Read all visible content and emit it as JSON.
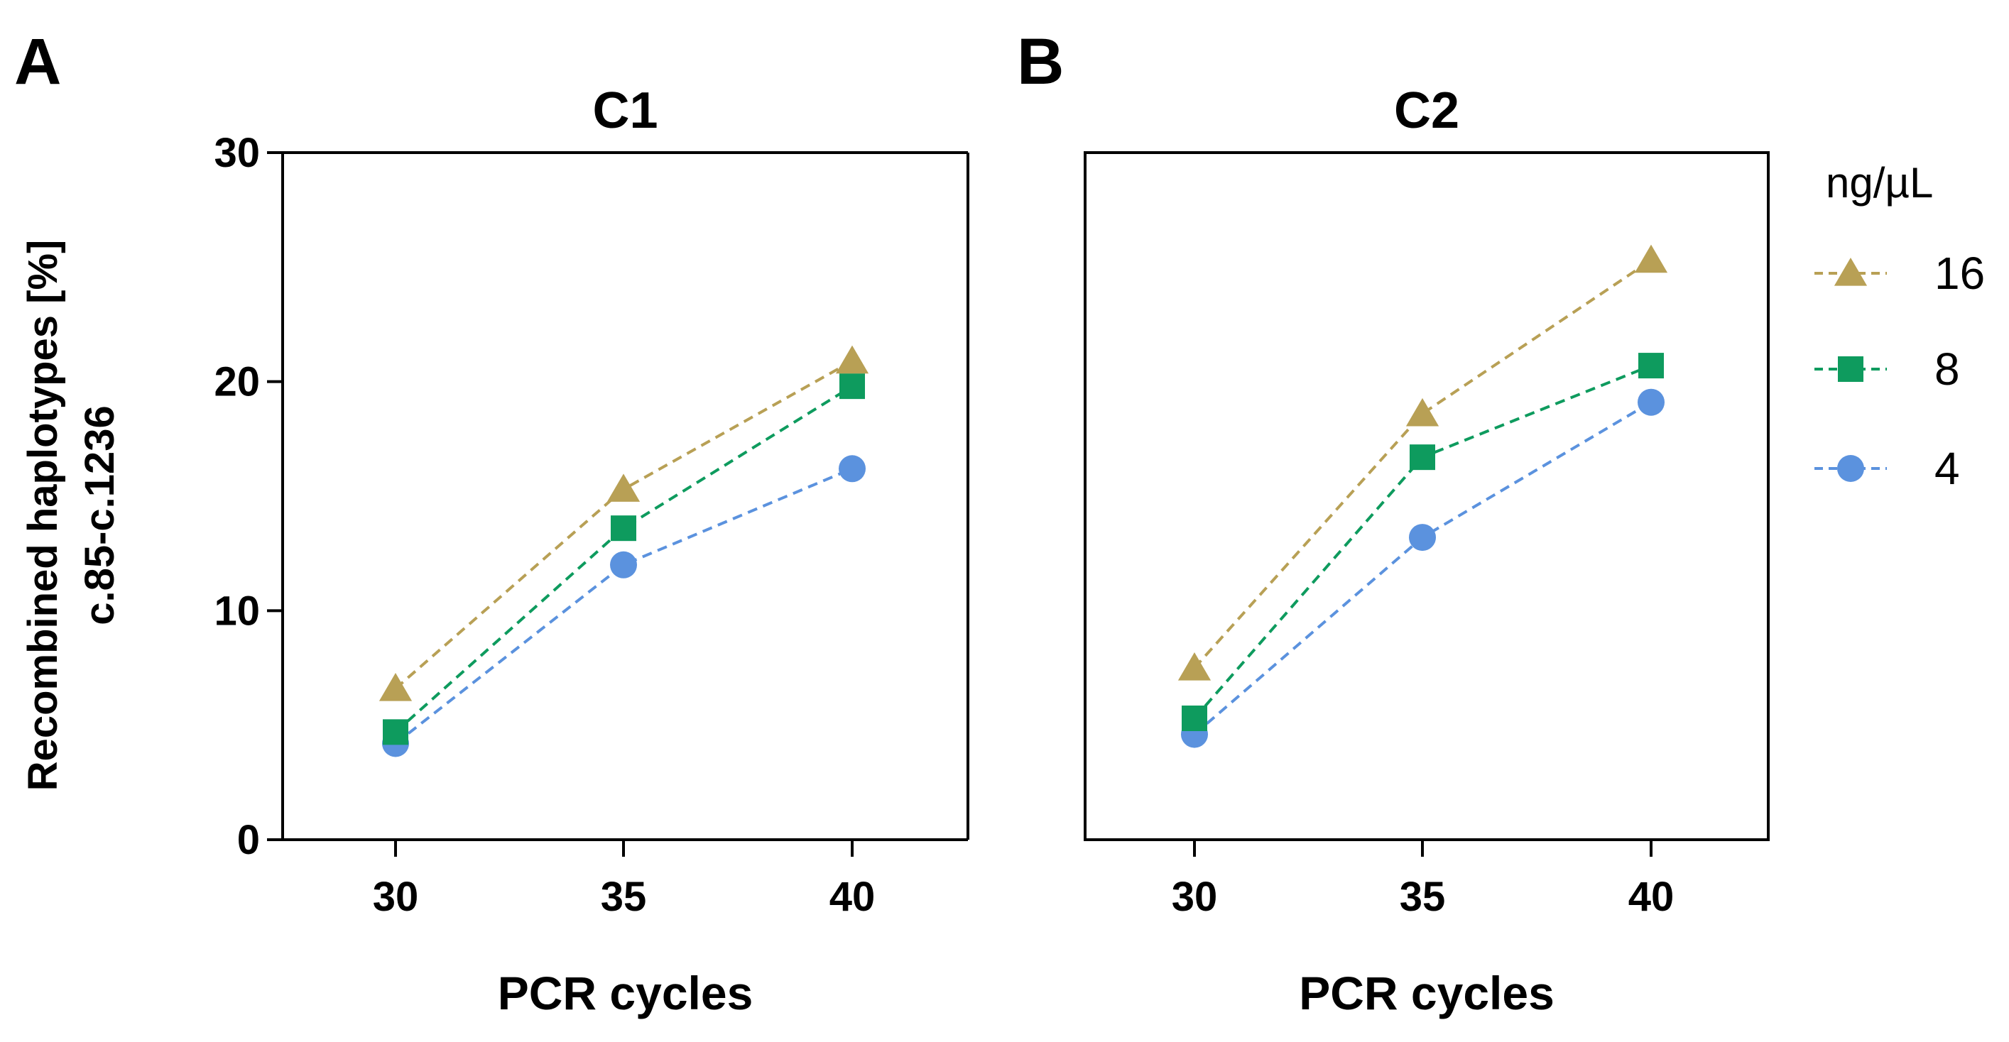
{
  "panel_labels": [
    "A",
    "B"
  ],
  "y_axis": {
    "label_line1": "Recombined haplotypes [%]",
    "label_line2": "c.85-c.1236"
  },
  "legend": {
    "title": "ng/µL",
    "items": [
      {
        "label": "16",
        "marker": "triangle",
        "color": "#B8A055"
      },
      {
        "label": "8",
        "marker": "square",
        "color": "#0E9B5E"
      },
      {
        "label": "4",
        "marker": "circle",
        "color": "#5B92DE"
      }
    ]
  },
  "chart_data": [
    {
      "type": "line",
      "title": "C1",
      "xlabel": "PCR cycles",
      "ylabel": "Recombined haplotypes [%] c.85-c.1236",
      "x": [
        30,
        35,
        40
      ],
      "xticks": [
        "30",
        "35",
        "40"
      ],
      "yticks": [
        "0",
        "10",
        "20",
        "30"
      ],
      "ylim": [
        0,
        30
      ],
      "series": [
        {
          "name": "16",
          "values": [
            6.6,
            15.3,
            20.9
          ]
        },
        {
          "name": "8",
          "values": [
            4.7,
            13.6,
            19.8
          ]
        },
        {
          "name": "4",
          "values": [
            4.2,
            12.0,
            16.2
          ]
        }
      ]
    },
    {
      "type": "line",
      "title": "C2",
      "xlabel": "PCR cycles",
      "x": [
        30,
        35,
        40
      ],
      "xticks": [
        "30",
        "35",
        "40"
      ],
      "ylim": [
        0,
        30
      ],
      "series": [
        {
          "name": "16",
          "values": [
            7.5,
            18.6,
            25.3
          ]
        },
        {
          "name": "8",
          "values": [
            5.3,
            16.7,
            20.7
          ]
        },
        {
          "name": "4",
          "values": [
            4.6,
            13.2,
            19.1
          ]
        }
      ]
    }
  ]
}
